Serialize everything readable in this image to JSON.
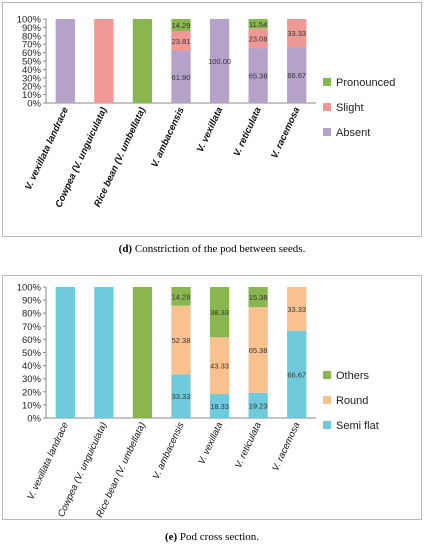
{
  "captions": {
    "d": {
      "letter": "(d)",
      "text": " Constriction of the pod between seeds."
    },
    "e": {
      "letter": "(e)",
      "text": " Pod cross section."
    }
  },
  "colors": {
    "absent": "#b4a2c8",
    "slight": "#ef9896",
    "pronounced": "#8ab650",
    "semi_flat": "#6fcbdb",
    "round": "#f9c18f",
    "others": "#8ab650"
  },
  "chart_data": [
    {
      "type": "bar",
      "stacked": true,
      "percent": true,
      "categories": [
        "V. vexillata landrace",
        "Cowpea (V. unguiculata)",
        "Rice bean (V. umbellata)",
        "V. ambacensis",
        "V. vexillata",
        "V. reticulata",
        "V. racemosa"
      ],
      "yticks": [
        "0%",
        "10%",
        "20%",
        "30%",
        "40%",
        "50%",
        "60%",
        "70%",
        "80%",
        "90%",
        "100%"
      ],
      "ylim": [
        0,
        100
      ],
      "legend_position": "right",
      "series": [
        {
          "name": "Absent",
          "color_key": "absent",
          "values": [
            100,
            0,
            0,
            61.9,
            100.0,
            65.38,
            66.67
          ],
          "labels": [
            "",
            "",
            "",
            "61.90",
            "100.00",
            "65.38",
            "66.67"
          ]
        },
        {
          "name": "Slight",
          "color_key": "slight",
          "values": [
            0,
            100,
            0,
            23.81,
            0,
            23.08,
            33.33
          ],
          "labels": [
            "",
            "",
            "",
            "23.81",
            "",
            "23.08",
            "33.33"
          ]
        },
        {
          "name": "Pronounced",
          "color_key": "pronounced",
          "values": [
            0,
            0,
            100,
            14.29,
            0,
            11.54,
            0
          ],
          "labels": [
            "",
            "",
            "",
            "14.29",
            "",
            "11.54",
            ""
          ]
        }
      ]
    },
    {
      "type": "bar",
      "stacked": true,
      "percent": true,
      "categories": [
        "V. vexillata landrace",
        "Cowpea (V. unguiculata)",
        "Rice bean (V. umbellata)",
        "V. ambacensis",
        "V. vexillata",
        "V. reticulata",
        "V. racemosa"
      ],
      "yticks": [
        "0%",
        "10%",
        "20%",
        "30%",
        "40%",
        "50%",
        "60%",
        "70%",
        "80%",
        "90%",
        "100%"
      ],
      "ylim": [
        0,
        100
      ],
      "legend_position": "right",
      "series": [
        {
          "name": "Semi flat",
          "color_key": "semi_flat",
          "values": [
            100,
            100,
            0,
            33.33,
            18.33,
            19.23,
            66.67
          ],
          "labels": [
            "",
            "",
            "",
            "33.33",
            "18.33",
            "19.23",
            "66.67"
          ]
        },
        {
          "name": "Round",
          "color_key": "round",
          "values": [
            0,
            0,
            0,
            52.38,
            43.33,
            65.38,
            33.33
          ],
          "labels": [
            "",
            "",
            "",
            "52.38",
            "43.33",
            "65.38",
            "33.33"
          ]
        },
        {
          "name": "Others",
          "color_key": "others",
          "values": [
            0,
            0,
            100,
            14.29,
            38.33,
            15.38,
            0
          ],
          "labels": [
            "",
            "",
            "",
            "14.29",
            "38.33",
            "15.38",
            ""
          ]
        }
      ]
    }
  ]
}
